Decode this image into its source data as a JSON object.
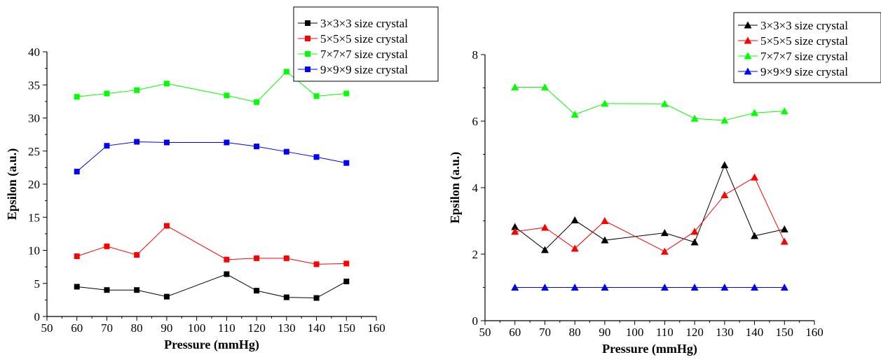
{
  "chart_data": [
    {
      "type": "line",
      "xlabel": "Pressure (mmHg)",
      "ylabel": "Epsilon (a.u.)",
      "xlim": [
        50,
        160
      ],
      "ylim": [
        0,
        40
      ],
      "xticks": [
        50,
        60,
        70,
        80,
        90,
        100,
        110,
        120,
        130,
        140,
        150,
        160
      ],
      "yticks": [
        0,
        5,
        10,
        15,
        20,
        25,
        30,
        35,
        40
      ],
      "marker": "square",
      "legend_position": "top-right",
      "x": [
        60,
        70,
        80,
        90,
        110,
        120,
        130,
        140,
        150
      ],
      "series": [
        {
          "name": "3×3×3 size crystal",
          "color": "#000000",
          "values": [
            4.5,
            4.0,
            4.0,
            3.0,
            6.4,
            3.9,
            2.9,
            2.8,
            5.3
          ]
        },
        {
          "name": "5×5×5 size crystal",
          "color": "#ff0000",
          "values": [
            9.1,
            10.6,
            9.3,
            13.7,
            8.6,
            8.8,
            8.8,
            7.9,
            8.0
          ]
        },
        {
          "name": "7×7×7 size crystal",
          "color": "#00ff00",
          "values": [
            33.2,
            33.7,
            34.2,
            35.2,
            33.4,
            32.4,
            37.0,
            33.3,
            33.7
          ]
        },
        {
          "name": "9×9×9 size crystal",
          "color": "#0000ff",
          "values": [
            21.9,
            25.8,
            26.4,
            26.3,
            26.3,
            25.7,
            24.9,
            24.1,
            23.2
          ]
        }
      ]
    },
    {
      "type": "line",
      "xlabel": "Pressure (mmHg)",
      "ylabel": "Epsilon (a.u.)",
      "xlim": [
        50,
        160
      ],
      "ylim": [
        0,
        8
      ],
      "xticks": [
        50,
        60,
        70,
        80,
        90,
        100,
        110,
        120,
        130,
        140,
        150,
        160
      ],
      "yticks": [
        0,
        2,
        4,
        6,
        8
      ],
      "marker": "triangle",
      "legend_position": "top-right",
      "x": [
        60,
        70,
        80,
        90,
        110,
        120,
        130,
        140,
        150
      ],
      "series": [
        {
          "name": "3×3×3 size crystal",
          "color": "#000000",
          "values": [
            2.82,
            2.13,
            3.02,
            2.42,
            2.64,
            2.36,
            4.68,
            2.55,
            2.75
          ]
        },
        {
          "name": "5×5×5 size crystal",
          "color": "#ff0000",
          "values": [
            2.68,
            2.8,
            2.17,
            3.0,
            2.08,
            2.68,
            3.78,
            4.31,
            2.38
          ]
        },
        {
          "name": "7×7×7 size crystal",
          "color": "#00ff00",
          "values": [
            7.02,
            7.02,
            6.2,
            6.53,
            6.52,
            6.08,
            6.02,
            6.25,
            6.3
          ]
        },
        {
          "name": "9×9×9 size crystal",
          "color": "#0000ff",
          "values": [
            1.0,
            1.0,
            1.0,
            1.0,
            1.0,
            1.0,
            1.0,
            1.0,
            1.0
          ]
        }
      ]
    }
  ]
}
